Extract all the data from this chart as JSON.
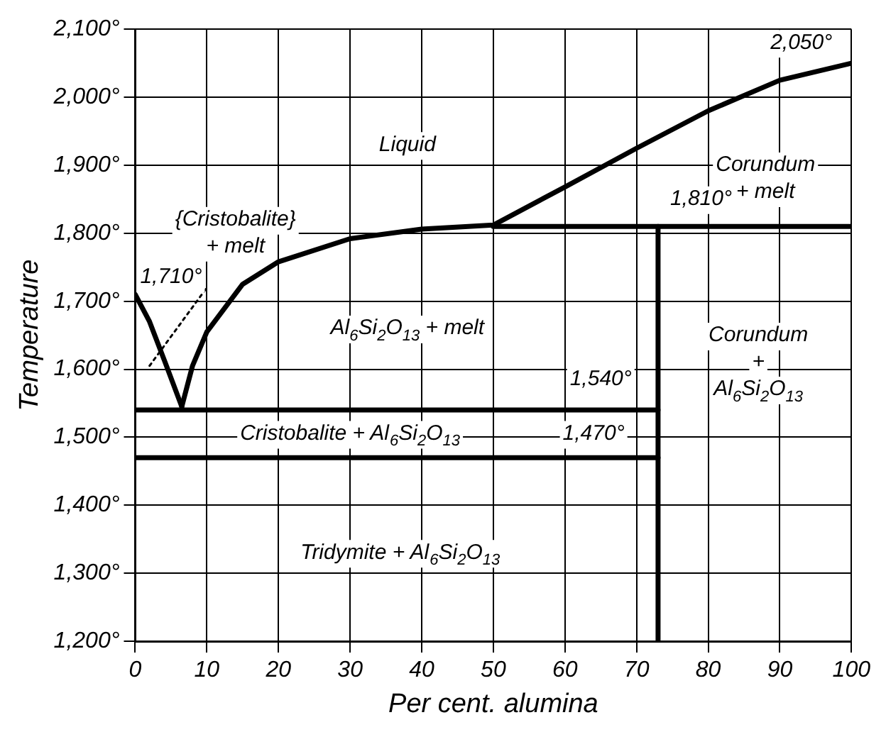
{
  "chart_data": {
    "type": "line",
    "xlabel": "Per cent. alumina",
    "ylabel": "Temperature",
    "xlim": [
      0,
      100
    ],
    "xticks": [
      0,
      10,
      20,
      30,
      40,
      50,
      60,
      70,
      80,
      90,
      100
    ],
    "ylim": [
      1200,
      2100
    ],
    "yticks": [
      {
        "value": 1200,
        "label": "1,200°"
      },
      {
        "value": 1300,
        "label": "1,300°"
      },
      {
        "value": 1400,
        "label": "1,400°"
      },
      {
        "value": 1500,
        "label": "1,500°"
      },
      {
        "value": 1600,
        "label": "1,600°"
      },
      {
        "value": 1700,
        "label": "1,700°"
      },
      {
        "value": 1800,
        "label": "1,800°"
      },
      {
        "value": 1900,
        "label": "1,900°"
      },
      {
        "value": 2000,
        "label": "2,000°"
      },
      {
        "value": 2100,
        "label": "2,100°"
      }
    ],
    "grid": true,
    "legend": false,
    "marker": "none",
    "series": [
      {
        "color": "#000000",
        "x": [
          0,
          2,
          4,
          6.5
        ],
        "values": [
          1710,
          1670,
          1615,
          1545
        ]
      },
      {
        "color": "#000000",
        "x": [
          6.5,
          8,
          10,
          15,
          20,
          30,
          40,
          50,
          60,
          70,
          80,
          90,
          100
        ],
        "values": [
          1545,
          1605,
          1655,
          1725,
          1758,
          1792,
          1806,
          1812,
          1868,
          1925,
          1980,
          2025,
          2050
        ]
      },
      {
        "color": "#000000",
        "x": [
          0,
          73
        ],
        "values": [
          1540,
          1540
        ]
      },
      {
        "color": "#000000",
        "x": [
          0,
          73
        ],
        "values": [
          1470,
          1470
        ]
      },
      {
        "color": "#000000",
        "x": [
          73,
          73
        ],
        "values": [
          1200,
          1810
        ]
      },
      {
        "color": "#000000",
        "x": [
          50,
          100
        ],
        "values": [
          1810,
          1810
        ]
      },
      {
        "color": "#000000",
        "x": [
          2,
          10
        ],
        "values": [
          1605,
          1720
        ],
        "line_style": "dotted"
      }
    ],
    "annotations": [
      "Liquid",
      "{Cristobalite}\n+ melt",
      "1,710°",
      "Al$_{6}$Si$_{2}$O$_{13}$ + melt",
      "1,540°",
      "Cristobalite + Al$_{6}$Si$_{2}$O$_{13}$",
      "1,470°",
      "Tridymite + Al$_{6}$Si$_{2}$O$_{13}$",
      "Corundum\n+ melt",
      "1,810°",
      "Corundum\n+\nAl$_{6}$Si$_{2}$O$_{13}$",
      "2,050°"
    ]
  }
}
